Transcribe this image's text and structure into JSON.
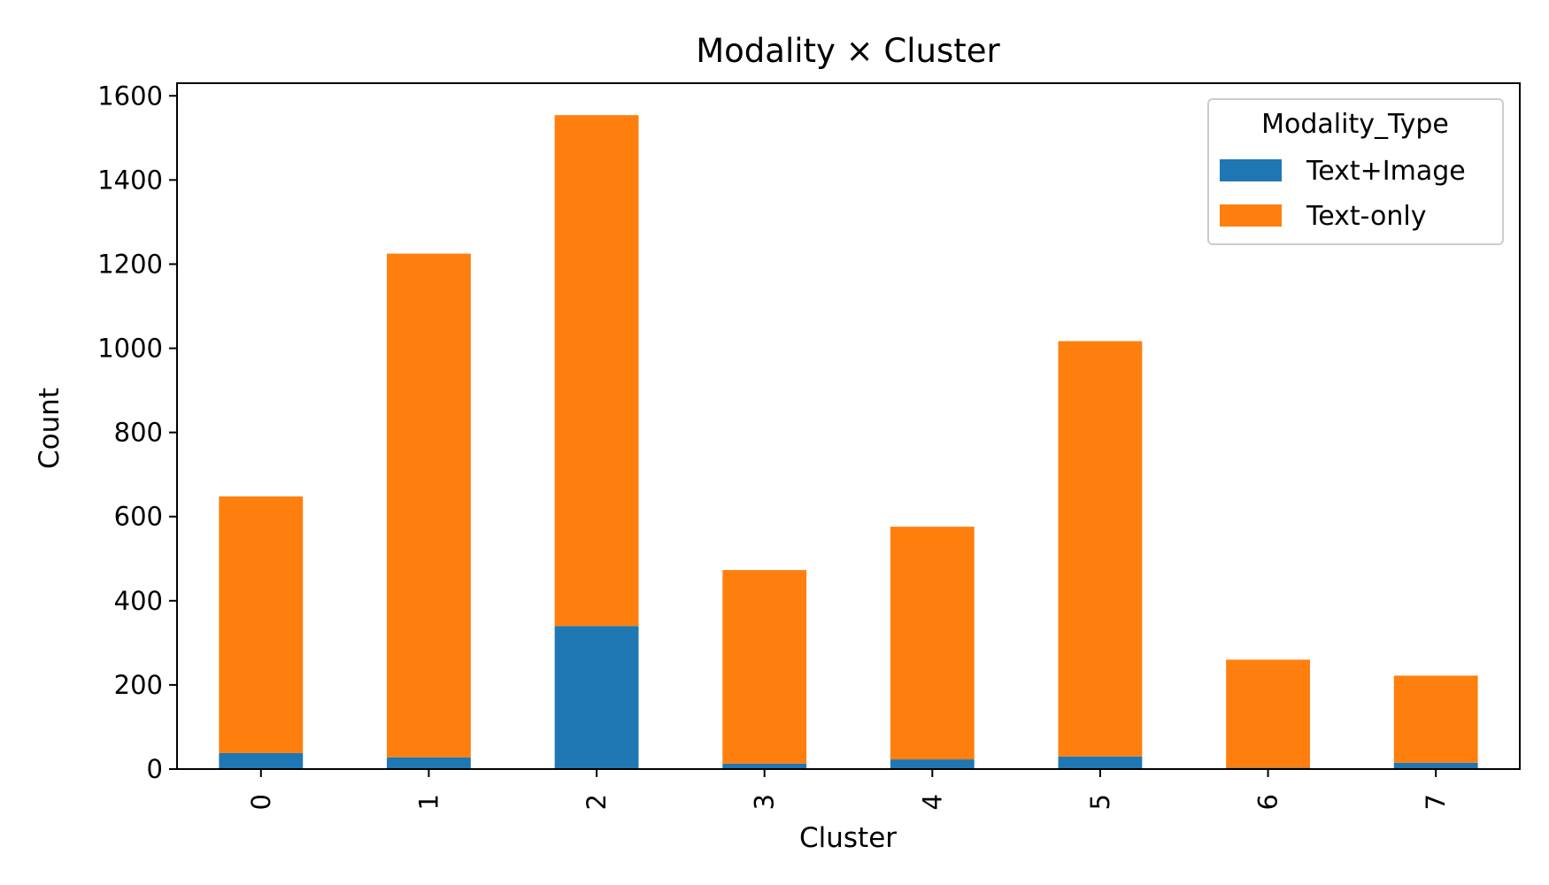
{
  "chart_data": {
    "type": "bar",
    "stacked": true,
    "title": "Modality × Cluster",
    "xlabel": "Cluster",
    "ylabel": "Count",
    "categories": [
      "0",
      "1",
      "2",
      "3",
      "4",
      "5",
      "6",
      "7"
    ],
    "series": [
      {
        "name": "Text+Image",
        "color": "#1f77b4",
        "values": [
          38,
          28,
          340,
          13,
          23,
          30,
          3,
          15
        ]
      },
      {
        "name": "Text-only",
        "color": "#ff7f0e",
        "values": [
          610,
          1197,
          1214,
          460,
          553,
          987,
          257,
          207
        ]
      }
    ],
    "ylim": [
      0,
      1630
    ],
    "yticks": [
      0,
      200,
      400,
      600,
      800,
      1000,
      1200,
      1400,
      1600
    ],
    "grid": false,
    "legend": {
      "title": "Modality_Type",
      "position": "top-right"
    }
  }
}
